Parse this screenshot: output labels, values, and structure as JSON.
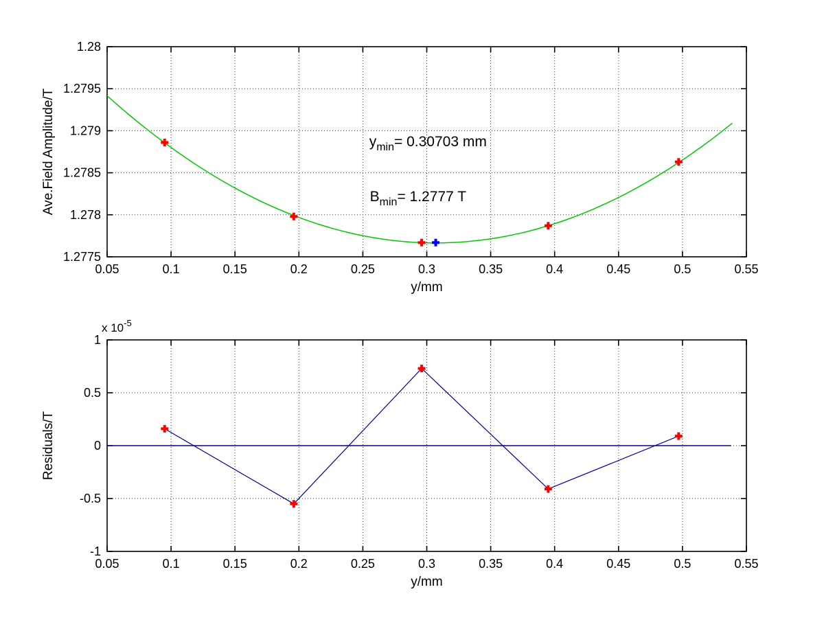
{
  "figure": {
    "background": "#ffffff"
  },
  "chart_data": [
    {
      "id": "field-amplitude-plot",
      "type": "scatter",
      "title": "",
      "xlabel": "y/mm",
      "ylabel": "Ave.Field Amplitude/T",
      "xlim": [
        0.05,
        0.55
      ],
      "ylim": [
        1.2775,
        1.28
      ],
      "grid": true,
      "legend": "none",
      "xticks": [
        0.05,
        0.1,
        0.15,
        0.2,
        0.25,
        0.3,
        0.35,
        0.4,
        0.45,
        0.5,
        0.55
      ],
      "xtick_labels": [
        "0.05",
        "0.1",
        "0.15",
        "0.2",
        "0.25",
        "0.3",
        "0.35",
        "0.4",
        "0.45",
        "0.5",
        "0.55"
      ],
      "yticks": [
        1.2775,
        1.278,
        1.2785,
        1.279,
        1.2795,
        1.28
      ],
      "ytick_labels": [
        "1.2775",
        "1.278",
        "1.2785",
        "1.279",
        "1.2795",
        "1.28"
      ],
      "series": [
        {
          "name": "parabolic-fit-curve",
          "kind": "parabola",
          "color": "#00c800",
          "vertex_x": 0.30703,
          "vertex_y": 1.277665,
          "coeff": 0.0265,
          "x_range": [
            0.05,
            0.539
          ]
        },
        {
          "name": "measured-field-points",
          "kind": "scatter",
          "marker": "plus",
          "color": "#ff0000",
          "x": [
            0.095,
            0.196,
            0.296,
            0.395,
            0.497
          ],
          "y": [
            1.27886,
            1.27798,
            1.27767,
            1.27787,
            1.27863
          ]
        },
        {
          "name": "fit-minimum-point",
          "kind": "scatter",
          "marker": "plus",
          "color": "#0000ff",
          "x": [
            0.307
          ],
          "y": [
            1.27767
          ]
        }
      ],
      "annotations": [
        {
          "name": "ymin-annotation",
          "main": "y",
          "sub": "min",
          "rest": "= 0.30703 mm",
          "x": 0.255,
          "y": 1.278815
        },
        {
          "name": "bmin-annotation",
          "main": "B",
          "sub": "min",
          "rest": "= 1.2777 T",
          "x": 0.2555,
          "y": 1.278162
        }
      ]
    },
    {
      "id": "residuals-plot",
      "type": "line",
      "title": "",
      "xlabel": "y/mm",
      "ylabel": "Residuals/T",
      "exponent_label": {
        "base": "x 10",
        "exponent": "-5"
      },
      "xlim": [
        0.05,
        0.55
      ],
      "ylim": [
        -1,
        1
      ],
      "grid": true,
      "legend": "none",
      "xticks": [
        0.05,
        0.1,
        0.15,
        0.2,
        0.25,
        0.3,
        0.35,
        0.4,
        0.45,
        0.5,
        0.55
      ],
      "xtick_labels": [
        "0.05",
        "0.1",
        "0.15",
        "0.2",
        "0.25",
        "0.3",
        "0.35",
        "0.4",
        "0.45",
        "0.5",
        "0.55"
      ],
      "yticks": [
        -1,
        -0.5,
        0,
        0.5,
        1
      ],
      "ytick_labels": [
        "-1",
        "-0.5",
        "0",
        "0.5",
        "1"
      ],
      "series": [
        {
          "name": "zero-reference-line",
          "kind": "hline",
          "color": "#000099",
          "y": 0,
          "x_range": [
            0.05,
            0.538
          ]
        },
        {
          "name": "residual-line",
          "kind": "line",
          "color": "#000099",
          "marker": "plus",
          "marker_color": "#ff0000",
          "x": [
            0.095,
            0.196,
            0.296,
            0.395,
            0.497
          ],
          "y": [
            0.16,
            -0.55,
            0.73,
            -0.41,
            0.09
          ]
        }
      ]
    }
  ]
}
